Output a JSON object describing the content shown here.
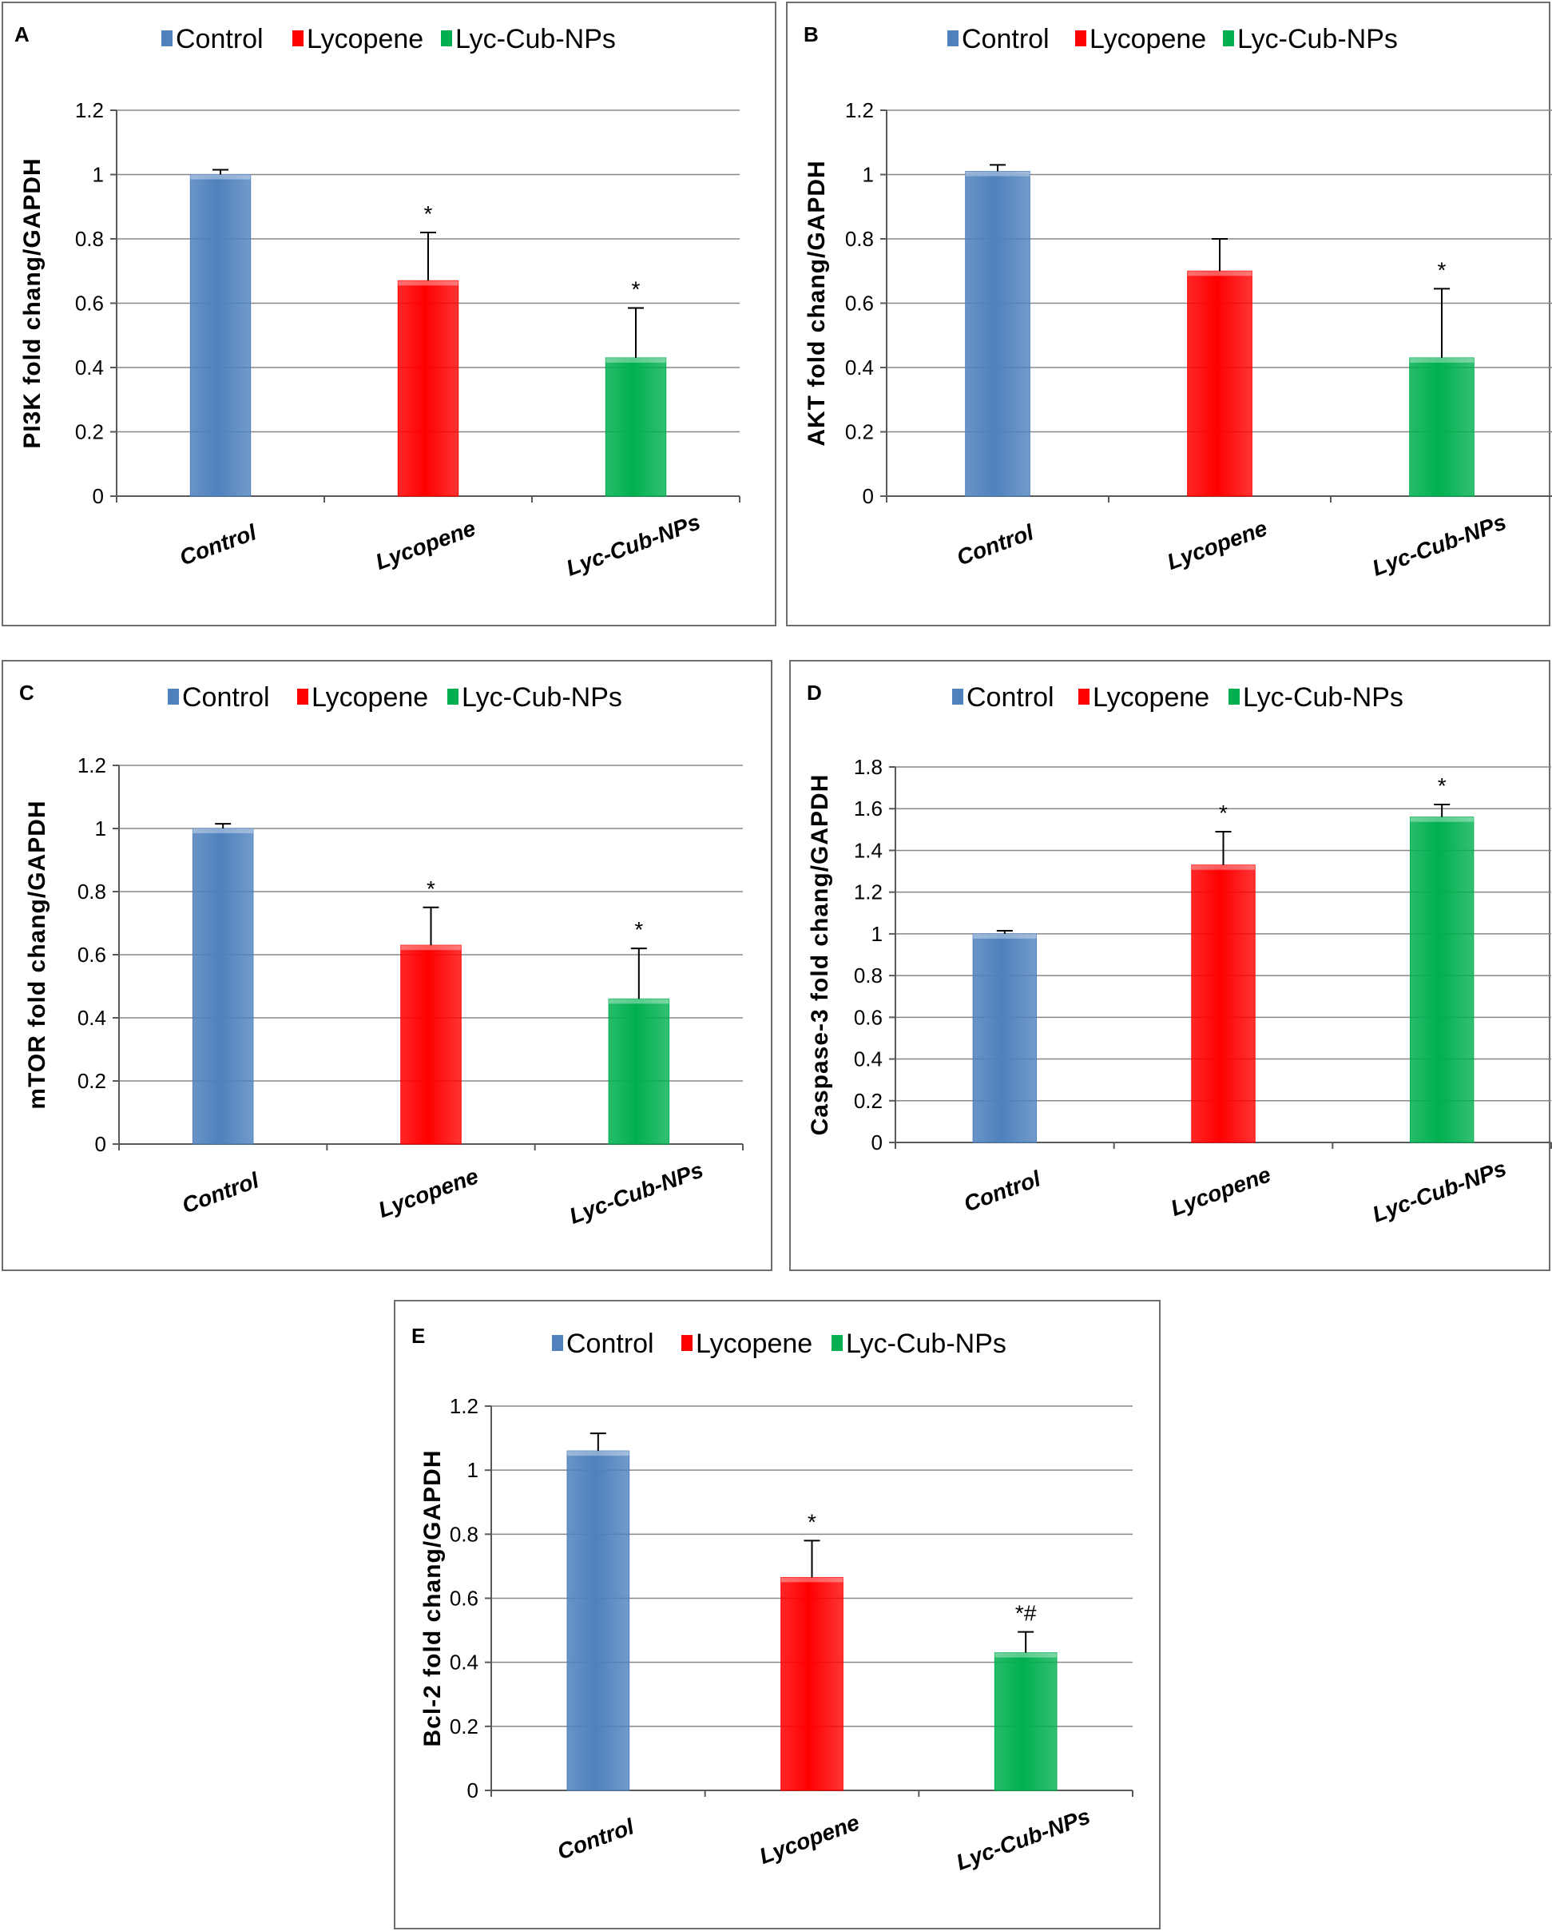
{
  "colors": {
    "control": "#4f81bd",
    "lycopene": "#ff0000",
    "lyc_cub_nps": "#00b050",
    "grid": "#888888",
    "axis": "#595959"
  },
  "legend": [
    "Control",
    "Lycopene",
    "Lyc-Cub-NPs"
  ],
  "chart_data": [
    {
      "type": "bar",
      "panel": "A",
      "categories": [
        "Control",
        "Lycopene",
        "Lyc-Cub-NPs"
      ],
      "values": [
        1.0,
        0.67,
        0.43
      ],
      "errors": [
        0.015,
        0.15,
        0.155
      ],
      "annotations": [
        "",
        "*",
        "*"
      ],
      "ylabel": "PI3K fold chang/GAPDH",
      "ylim": [
        0,
        1.2
      ],
      "yticks": [
        "0",
        "0.2",
        "0.4",
        "0.6",
        "0.8",
        "1",
        "1.2"
      ],
      "legend_position": "top"
    },
    {
      "type": "bar",
      "panel": "B",
      "categories": [
        "Control",
        "Lycopene",
        "Lyc-Cub-NPs"
      ],
      "values": [
        1.01,
        0.7,
        0.43
      ],
      "errors": [
        0.02,
        0.1,
        0.215
      ],
      "annotations": [
        "",
        "",
        "*"
      ],
      "ylabel": "AKT fold chang/GAPDH",
      "ylim": [
        0,
        1.2
      ],
      "yticks": [
        "0",
        "0.2",
        "0.4",
        "0.6",
        "0.8",
        "1",
        "1.2"
      ],
      "legend_position": "top"
    },
    {
      "type": "bar",
      "panel": "C",
      "categories": [
        "Control",
        "Lycopene",
        "Lyc-Cub-NPs"
      ],
      "values": [
        1.0,
        0.63,
        0.46
      ],
      "errors": [
        0.015,
        0.12,
        0.16
      ],
      "annotations": [
        "",
        "*",
        "*"
      ],
      "ylabel": "mTOR  fold chang/GAPDH",
      "ylim": [
        0,
        1.2
      ],
      "yticks": [
        "0",
        "0.2",
        "0.4",
        "0.6",
        "0.8",
        "1",
        "1.2"
      ],
      "legend_position": "top"
    },
    {
      "type": "bar",
      "panel": "D",
      "categories": [
        "Control",
        "Lycopene",
        "Lyc-Cub-NPs"
      ],
      "values": [
        1.0,
        1.33,
        1.56
      ],
      "errors": [
        0.015,
        0.16,
        0.06
      ],
      "annotations": [
        "",
        "*",
        "*"
      ],
      "ylabel": "Caspase-3 fold chang/GAPDH",
      "ylim": [
        0,
        1.8
      ],
      "yticks": [
        "0",
        "0.2",
        "0.4",
        "0.6",
        "0.8",
        "1",
        "1.2",
        "1.4",
        "1.6",
        "1.8"
      ],
      "legend_position": "top"
    },
    {
      "type": "bar",
      "panel": "E",
      "categories": [
        "Control",
        "Lycopene",
        "Lyc-Cub-NPs"
      ],
      "values": [
        1.06,
        0.665,
        0.43
      ],
      "errors": [
        0.055,
        0.115,
        0.065
      ],
      "annotations": [
        "",
        "*",
        "*#"
      ],
      "ylabel": "Bcl-2  fold chang/GAPDH",
      "ylim": [
        0,
        1.2
      ],
      "yticks": [
        "0",
        "0.2",
        "0.4",
        "0.6",
        "0.8",
        "1",
        "1.2"
      ],
      "legend_position": "top"
    }
  ]
}
